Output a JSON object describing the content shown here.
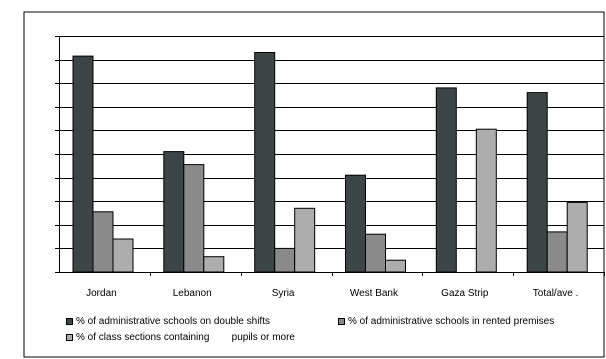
{
  "chart_data": {
    "type": "bar",
    "title": "",
    "xlabel": "",
    "ylabel": "",
    "categories": [
      "Jordan",
      "Lebanon",
      "Syria",
      "West Bank",
      "Gaza Strip",
      "Total/ave ."
    ],
    "ylim": [
      0,
      100
    ],
    "grid": true,
    "legend_position": "bottom",
    "series": [
      {
        "name": "% of administrative schools on double shifts",
        "color": "#3c4645",
        "values": [
          91.5,
          51,
          93,
          41,
          78,
          76
        ]
      },
      {
        "name": "% of administrative schools in rented premises",
        "color": "#8a8a8a",
        "values": [
          25.5,
          45.5,
          10,
          16,
          0,
          17
        ]
      },
      {
        "name": "% of class sections containing        pupils or more",
        "color": "#adadad",
        "values": [
          14,
          6.5,
          27,
          5,
          60.5,
          29.5
        ]
      }
    ]
  }
}
